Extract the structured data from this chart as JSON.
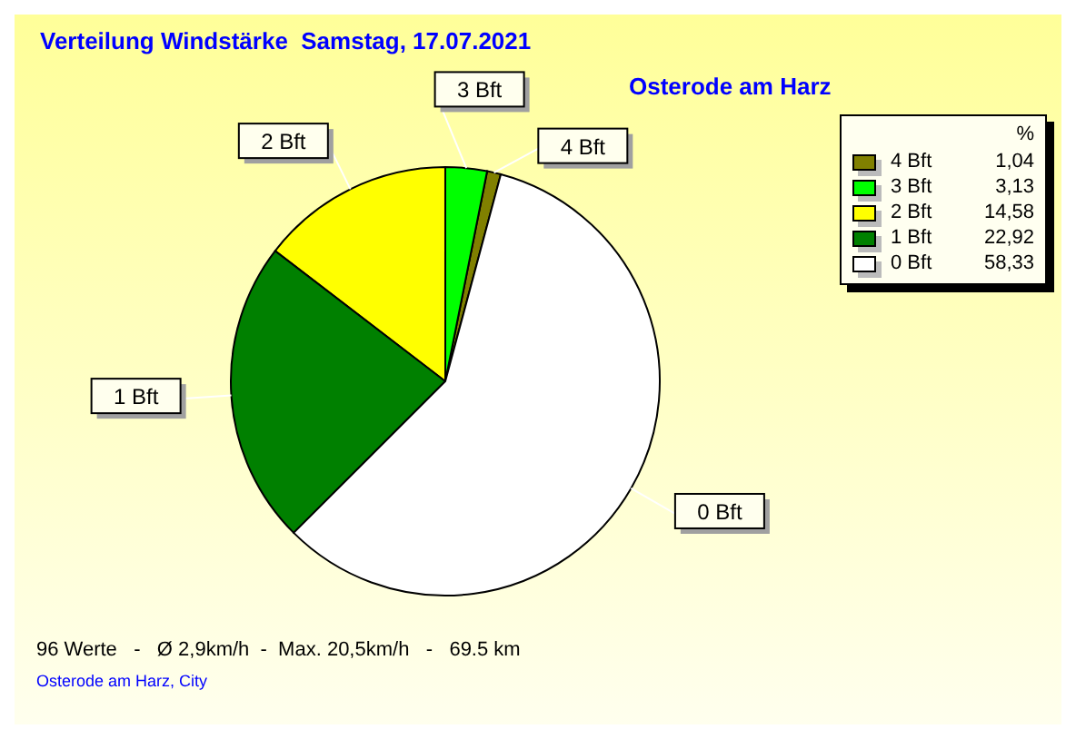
{
  "chart_data": {
    "type": "pie",
    "title": "Verteilung Windstärke  Samstag, 17.07.2021",
    "subtitle": "Osterode am Harz",
    "categories": [
      "4 Bft",
      "3 Bft",
      "2 Bft",
      "1 Bft",
      "0 Bft"
    ],
    "values": [
      1.04,
      3.13,
      14.58,
      22.92,
      58.33
    ],
    "value_labels": [
      "1,04",
      "3,13",
      "14,58",
      "22,92",
      "58,33"
    ],
    "colors": [
      "#808000",
      "#00ff00",
      "#ffff00",
      "#008000",
      "#ffffff"
    ],
    "legend": "top right",
    "legend_title": "%",
    "annotations": [
      "96 Werte   -   Ø 2,9km/h  -  Max. 20,5km/h   -   69.5 km",
      "Osterode am Harz, City"
    ]
  }
}
